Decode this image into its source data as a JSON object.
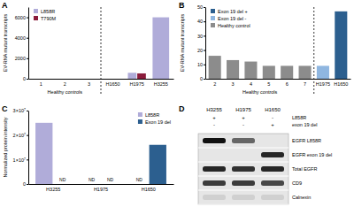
{
  "chart_data": [
    {
      "type": "bar",
      "title": "A",
      "y_label": "EV-RNA mutant transcripts",
      "categories": [
        "1",
        "2",
        "3",
        "H1650",
        "H1975",
        "H3255"
      ],
      "series": [
        {
          "name": "L858R",
          "color": "#b0acd9",
          "values": [
            0,
            0,
            0,
            0,
            580,
            6000
          ]
        },
        {
          "name": "T790M",
          "color": "#8b1c3c",
          "values": [
            0,
            0,
            0,
            0,
            520,
            null
          ]
        }
      ],
      "annotations": [
        "Healthy controls"
      ],
      "ylim": [
        0,
        7000
      ],
      "yticks": [
        0,
        2000,
        4000,
        6000
      ],
      "legend": "upper left"
    },
    {
      "type": "bar",
      "title": "B",
      "y_label": "EV-RNA mutant transcripts",
      "categories": [
        "2",
        "3",
        "4",
        "5",
        "6",
        "7",
        "H1975",
        "H1650"
      ],
      "series": [
        {
          "name": "Exon 19 del +",
          "color": "#2c5f8f",
          "values": [
            null,
            null,
            null,
            null,
            null,
            null,
            null,
            47
          ]
        },
        {
          "name": "Exon 19 del -",
          "color": "#8fb6e0",
          "values": [
            null,
            null,
            null,
            null,
            null,
            null,
            9,
            null
          ]
        },
        {
          "name": "Healthy control",
          "color": "#8c8c8c",
          "values": [
            16,
            13,
            12,
            9,
            9,
            9,
            null,
            null
          ]
        }
      ],
      "annotations": [
        "Healthy controls"
      ],
      "ylim": [
        0,
        50
      ],
      "yticks": [
        0,
        10,
        20,
        30,
        40,
        50
      ],
      "legend": "upper left"
    },
    {
      "type": "bar",
      "title": "C",
      "y_label": "Normalized protein intensity",
      "categories": [
        "H3255",
        "H1975",
        "H1650"
      ],
      "series": [
        {
          "name": "L858R",
          "color": "#b0acd9",
          "values": [
            25000000,
            null,
            null
          ],
          "value_labels": [
            null,
            "ND",
            "ND"
          ]
        },
        {
          "name": "Exon 19 del",
          "color": "#2c5f8f",
          "values": [
            null,
            null,
            16000000
          ],
          "value_labels": [
            "ND",
            "ND",
            null
          ]
        }
      ],
      "ylim": [
        0,
        30000000
      ],
      "yticks": [
        0,
        {
          "value": 10000000,
          "label": "1×10⁷"
        },
        {
          "value": 20000000,
          "label": "2×10⁷"
        },
        {
          "value": 30000000,
          "label": "3×10⁷"
        }
      ],
      "legend": "upper right"
    }
  ],
  "blot": {
    "title": "D",
    "columns": [
      "H3255",
      "H1975",
      "H1650"
    ],
    "conditions": [
      {
        "label": "L858R",
        "marks": [
          "+",
          "+",
          "-"
        ]
      },
      {
        "label": "exon 19 del",
        "marks": [
          "-",
          "-",
          "+"
        ]
      }
    ],
    "rows": [
      {
        "label": "EGFR L858R",
        "intensity": [
          1,
          0.6,
          0
        ]
      },
      {
        "label": "EGFR exon 19 del",
        "intensity": [
          0,
          0,
          0.9
        ]
      },
      {
        "label": "Total EGFR",
        "intensity": [
          0.9,
          0.85,
          0.9
        ]
      },
      {
        "label": "CD9",
        "intensity": [
          0.8,
          0.8,
          0.75
        ]
      },
      {
        "label": "Calnexin",
        "intensity": [
          0.1,
          0.1,
          0.1
        ]
      }
    ]
  }
}
